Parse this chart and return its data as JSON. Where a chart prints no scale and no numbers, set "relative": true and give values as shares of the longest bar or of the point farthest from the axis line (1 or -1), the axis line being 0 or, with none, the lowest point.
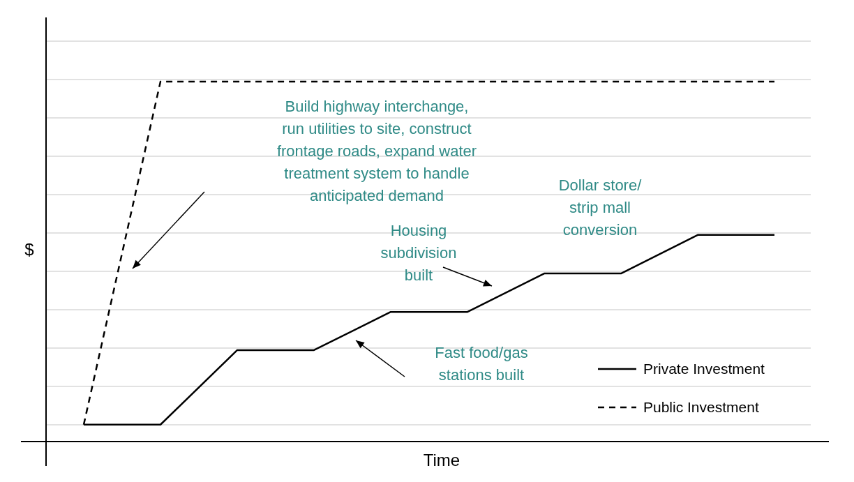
{
  "chart_data": {
    "type": "line",
    "relative": true,
    "xlabel": "Time",
    "ylabel": "$",
    "categories": [
      null,
      null,
      null,
      null,
      null,
      null,
      null,
      null,
      null,
      null
    ],
    "series": [
      {
        "name": "Private Investment",
        "color": "#000000",
        "line_style": "solid",
        "values": [
          0.047,
          0.047,
          0.254,
          0.254,
          0.36,
          0.36,
          0.467,
          0.467,
          0.574,
          0.574
        ]
      },
      {
        "name": "Public Investment",
        "color": "#000000",
        "line_style": "dashed",
        "values": [
          0.047,
          1,
          1,
          1,
          1,
          1,
          1,
          1,
          1,
          1
        ]
      }
    ],
    "annotations": [
      "Build highway interchange,\nrun utilities to site, construct\nfrontage roads, expand water\ntreatment system to handle\nanticipated demand",
      "Dollar store/\nstrip mall\nconversion",
      "Housing\nsubdivision\nbuilt",
      "Fast food/gas\nstations built"
    ],
    "grid": "y",
    "legend": "bottom right",
    "marker": "none"
  }
}
